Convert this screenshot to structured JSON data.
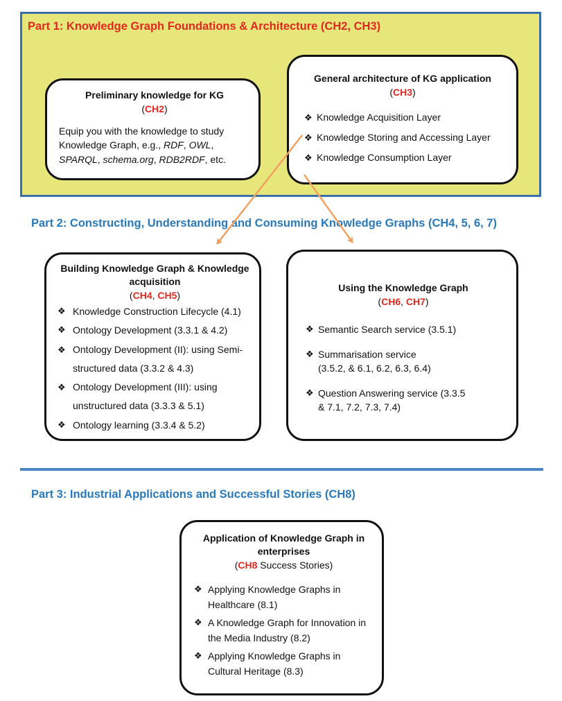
{
  "part1": {
    "title": "Part 1: Knowledge Graph Foundations &  Architecture (CH2, CH3)",
    "box_prelim": {
      "title": "Preliminary knowledge for KG",
      "ref": "CH2",
      "desc_prefix": "Equip you with the knowledge to study Knowledge Graph, e.g., ",
      "terms": [
        "RDF",
        "OWL",
        "SPARQL",
        "schema.org",
        "RDB2RDF"
      ],
      "desc_suffix": ", etc."
    },
    "box_arch": {
      "title": "General architecture of KG application",
      "ref": "CH3",
      "items": [
        "Knowledge Acquisition Layer",
        "Knowledge Storing and Accessing Layer",
        "Knowledge Consumption Layer"
      ]
    }
  },
  "part2": {
    "title": "Part 2: Constructing, Understanding and Consuming Knowledge Graphs (CH4, 5, 6, 7)",
    "box_build": {
      "title": "Building Knowledge Graph & Knowledge acquisition",
      "refs": [
        "CH4",
        "CH5"
      ],
      "items": [
        "Knowledge Construction Lifecycle (4.1)",
        "Ontology Development (3.3.1 & 4.2)",
        "Ontology Development (II): using Semi-structured data (3.3.2 & 4.3)",
        "Ontology Development (III): using unstructured data (3.3.3 & 5.1)",
        "Ontology learning (3.3.4 & 5.2)"
      ]
    },
    "box_using": {
      "title": "Using the Knowledge Graph",
      "refs": [
        "CH6",
        "CH7"
      ],
      "items": [
        "Semantic Search service (3.5.1)",
        "Summarisation service (3.5.2, & 6.1, 6.2, 6.3, 6.4)",
        "Question Answering service (3.3.5 & 7.1, 7.2, 7.3, 7.4)"
      ]
    }
  },
  "part3": {
    "title": "Part 3: Industrial Applications and Successful Stories (CH8)",
    "box_app": {
      "title": "Application of Knowledge Graph in enterprises",
      "ref": "CH8",
      "ref_suffix": " Success Stories",
      "items": [
        "Applying Knowledge Graphs in Healthcare (8.1)",
        "A Knowledge Graph for Innovation in the Media Industry (8.2)",
        "Applying Knowledge Graphs in Cultural Heritage (8.3)"
      ]
    }
  },
  "bullet_glyph": "❖",
  "colors": {
    "panel": "#e6e67a",
    "red": "#e0281f",
    "blue": "#2a79bb",
    "arrow": "#f0a262",
    "divider": "#4a86c5"
  }
}
